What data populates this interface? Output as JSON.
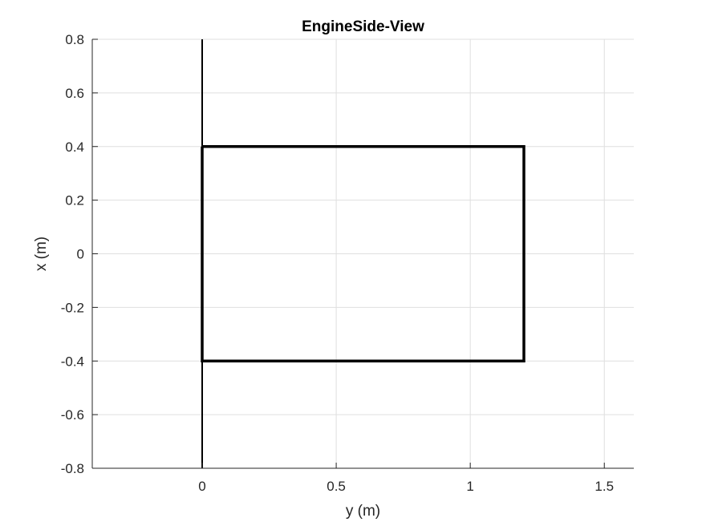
{
  "chart_data": {
    "type": "line",
    "title": "EngineSide-View",
    "xlabel": "y (m)",
    "ylabel": "x (m)",
    "xlim": [
      -0.41,
      1.61
    ],
    "ylim": [
      -0.8,
      0.8
    ],
    "xticks": [
      0,
      0.5,
      1,
      1.5
    ],
    "xtick_labels": [
      "0",
      "0.5",
      "1",
      "1.5"
    ],
    "yticks": [
      -0.8,
      -0.6,
      -0.4,
      -0.2,
      0,
      0.2,
      0.4,
      0.6,
      0.8
    ],
    "ytick_labels": [
      "-0.8",
      "-0.6",
      "-0.4",
      "-0.2",
      "0",
      "0.2",
      "0.4",
      "0.6",
      "0.8"
    ],
    "grid": true,
    "series": [
      {
        "color": "#000000",
        "line_style": "thick",
        "x": [
          0,
          1.2,
          1.2,
          0,
          0
        ],
        "y": [
          0.4,
          0.4,
          -0.4,
          -0.4,
          0.4
        ]
      },
      {
        "color": "#000000",
        "line_style": "thin",
        "x": [
          0,
          0
        ],
        "y": [
          -0.8,
          0.8
        ]
      }
    ]
  }
}
